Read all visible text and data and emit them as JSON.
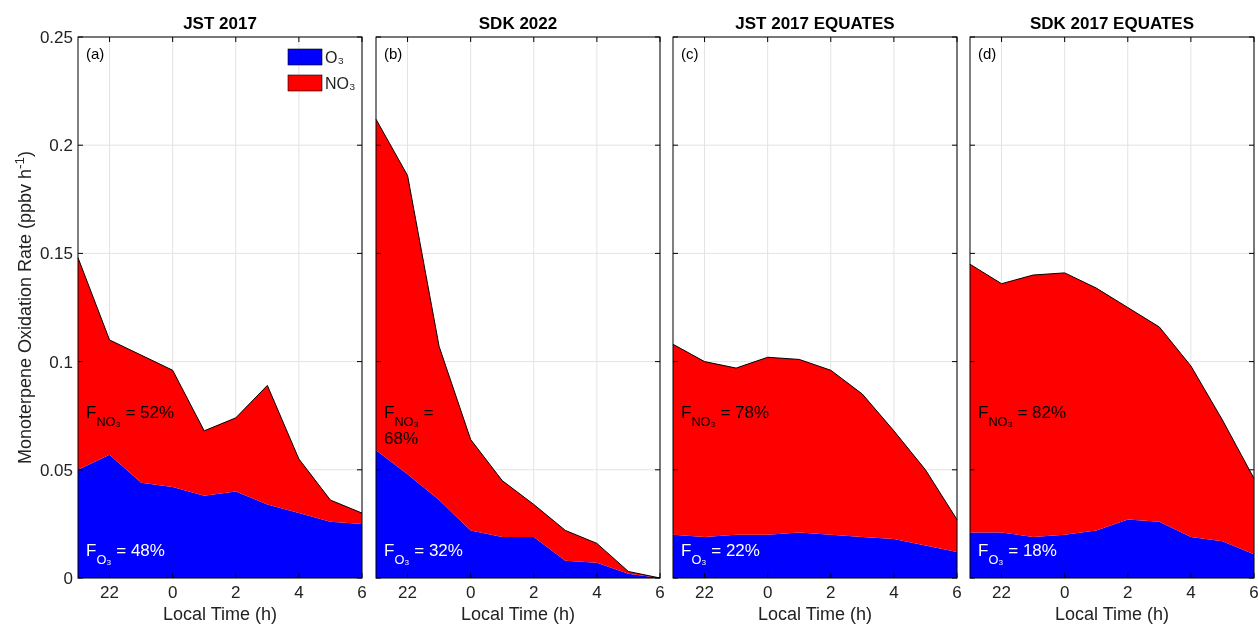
{
  "chart_data": [
    {
      "type": "area",
      "stacked": true,
      "title": "JST 2017",
      "xlabel": "Local Time (h)",
      "ylabel": "Monoterpene Oxidation Rate (ppbv h$^{-1}$)",
      "categories": [
        null,
        "22",
        null,
        "0",
        null,
        "2",
        null,
        "4",
        null,
        "6"
      ],
      "series": [
        {
          "name": "O₃",
          "color": "#0000ff",
          "values": [
            0.05,
            0.057,
            0.044,
            0.042,
            0.038,
            0.04,
            0.034,
            0.03,
            0.026,
            0.025
          ]
        },
        {
          "name": "NO₃",
          "color": "#ff0000",
          "values": [
            0.098,
            0.053,
            0.059,
            0.054,
            0.03,
            0.034,
            0.055,
            0.025,
            0.01,
            0.005
          ]
        }
      ],
      "ylim": [
        0,
        0.25
      ],
      "yticks": [
        0,
        0.05,
        0.1,
        0.15,
        0.2,
        0.25
      ],
      "grid": true,
      "legend": "top right",
      "annotations": [
        "(a)",
        "F$_{NO₃}$ = 52%",
        "F$_{O₃}$ = 48%"
      ]
    },
    {
      "type": "area",
      "stacked": true,
      "title": "SDK 2022",
      "xlabel": "Local Time (h)",
      "categories": [
        null,
        "22",
        null,
        "0",
        null,
        "2",
        null,
        "4",
        null,
        "6"
      ],
      "series": [
        {
          "color": "#0000ff",
          "values": [
            0.059,
            0.048,
            0.036,
            0.022,
            0.019,
            0.019,
            0.008,
            0.007,
            0.002,
            0.0
          ]
        },
        {
          "color": "#ff0000",
          "values": [
            0.153,
            0.138,
            0.071,
            0.042,
            0.026,
            0.015,
            0.014,
            0.009,
            0.001,
            0.0
          ]
        }
      ],
      "ylim": [
        0,
        0.25
      ],
      "yticks": [
        0,
        0.05,
        0.1,
        0.15,
        0.2,
        0.25
      ],
      "grid": true,
      "tick_labels": "x",
      "annotations": [
        "(b)",
        "F$_{NO₃}$ = 68%",
        "F$_{O₃}$ = 32%"
      ]
    },
    {
      "type": "area",
      "stacked": true,
      "title": "JST 2017 EQUATES",
      "xlabel": "Local Time (h)",
      "categories": [
        null,
        "22",
        null,
        "0",
        null,
        "2",
        null,
        "4",
        null,
        "6"
      ],
      "series": [
        {
          "color": "#0000ff",
          "values": [
            0.02,
            0.019,
            0.02,
            0.02,
            0.021,
            0.02,
            0.019,
            0.018,
            0.015,
            0.012
          ]
        },
        {
          "color": "#ff0000",
          "values": [
            0.088,
            0.081,
            0.077,
            0.082,
            0.08,
            0.076,
            0.066,
            0.05,
            0.035,
            0.015
          ]
        }
      ],
      "ylim": [
        0,
        0.25
      ],
      "yticks": [
        0,
        0.05,
        0.1,
        0.15,
        0.2,
        0.25
      ],
      "grid": true,
      "tick_labels": "x",
      "annotations": [
        "(c)",
        "F$_{NO₃}$ = 78%",
        "F$_{O₃}$ = 22%"
      ]
    },
    {
      "type": "area",
      "stacked": true,
      "title": "SDK 2017 EQUATES",
      "xlabel": "Local Time (h)",
      "categories": [
        null,
        "22",
        null,
        "0",
        null,
        "2",
        null,
        "4",
        null,
        "6"
      ],
      "series": [
        {
          "color": "#0000ff",
          "values": [
            0.021,
            0.021,
            0.019,
            0.02,
            0.022,
            0.027,
            0.026,
            0.019,
            0.017,
            0.011
          ]
        },
        {
          "color": "#ff0000",
          "values": [
            0.124,
            0.115,
            0.121,
            0.121,
            0.112,
            0.098,
            0.09,
            0.079,
            0.056,
            0.035
          ]
        }
      ],
      "ylim": [
        0,
        0.25
      ],
      "yticks": [
        0,
        0.05,
        0.1,
        0.15,
        0.2,
        0.25
      ],
      "grid": true,
      "tick_labels": "x",
      "annotations": [
        "(d)",
        "F$_{NO₃}$ = 82%",
        "F$_{O₃}$ = 18%"
      ]
    }
  ]
}
